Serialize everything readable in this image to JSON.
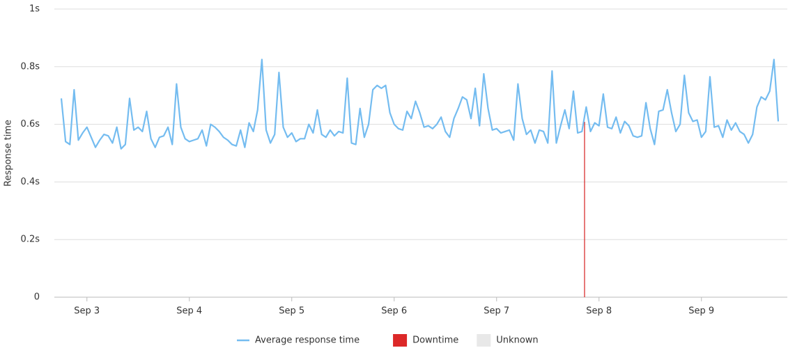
{
  "chart_data": {
    "type": "line",
    "y_label": "Response time",
    "ylim": [
      0,
      1
    ],
    "yticks": [
      0,
      {
        "value": 0.2,
        "label": "0.2s"
      },
      {
        "value": 0.4,
        "label": "0.4s"
      },
      {
        "value": 0.6,
        "label": "0.6s"
      },
      {
        "value": 0.8,
        "label": "0.8s"
      },
      {
        "value": 1,
        "label": "1s"
      }
    ],
    "grid": true,
    "categories": [
      null,
      null,
      null,
      null,
      null,
      null,
      "Sep 3",
      null,
      null,
      null,
      null,
      null,
      null,
      null,
      null,
      null,
      null,
      null,
      null,
      null,
      null,
      null,
      null,
      null,
      null,
      null,
      null,
      null,
      null,
      null,
      "Sep 4",
      null,
      null,
      null,
      null,
      null,
      null,
      null,
      null,
      null,
      null,
      null,
      null,
      null,
      null,
      null,
      null,
      null,
      null,
      null,
      null,
      null,
      null,
      null,
      "Sep 5",
      null,
      null,
      null,
      null,
      null,
      null,
      null,
      null,
      null,
      null,
      null,
      null,
      null,
      null,
      null,
      null,
      null,
      null,
      null,
      null,
      null,
      null,
      null,
      "Sep 6",
      null,
      null,
      null,
      null,
      null,
      null,
      null,
      null,
      null,
      null,
      null,
      null,
      null,
      null,
      null,
      null,
      null,
      null,
      null,
      null,
      null,
      null,
      null,
      "Sep 7",
      null,
      null,
      null,
      null,
      null,
      null,
      null,
      null,
      null,
      null,
      null,
      null,
      null,
      null,
      null,
      null,
      null,
      null,
      null,
      null,
      null,
      null,
      null,
      "Sep 8",
      null,
      null,
      null,
      null,
      null,
      null,
      null,
      null,
      null,
      null,
      null,
      null,
      null,
      null,
      null,
      null,
      null,
      null,
      null,
      null,
      null,
      null,
      null,
      "Sep 9",
      null,
      null,
      null,
      null,
      null,
      null,
      null,
      null,
      null,
      null,
      null,
      null,
      null,
      null,
      null,
      null,
      null,
      null
    ],
    "series": [
      {
        "name": "Average response time",
        "color": "#74bcf0",
        "values": [
          0.69,
          0.54,
          0.53,
          0.72,
          0.545,
          0.57,
          0.59,
          0.555,
          0.52,
          0.545,
          0.565,
          0.56,
          0.535,
          0.59,
          0.515,
          0.53,
          0.69,
          0.58,
          0.59,
          0.575,
          0.645,
          0.55,
          0.52,
          0.555,
          0.56,
          0.59,
          0.53,
          0.74,
          0.59,
          0.55,
          0.54,
          0.545,
          0.55,
          0.58,
          0.525,
          0.6,
          0.59,
          0.575,
          0.555,
          0.545,
          0.53,
          0.525,
          0.58,
          0.52,
          0.605,
          0.575,
          0.65,
          0.825,
          0.58,
          0.535,
          0.565,
          0.78,
          0.59,
          0.555,
          0.57,
          0.54,
          0.55,
          0.55,
          0.6,
          0.57,
          0.65,
          0.565,
          0.555,
          0.58,
          0.56,
          0.575,
          0.57,
          0.76,
          0.535,
          0.53,
          0.655,
          0.555,
          0.6,
          0.72,
          0.735,
          0.725,
          0.735,
          0.64,
          0.6,
          0.585,
          0.58,
          0.645,
          0.62,
          0.68,
          0.64,
          0.59,
          0.595,
          0.585,
          0.6,
          0.625,
          0.575,
          0.555,
          0.62,
          0.655,
          0.695,
          0.685,
          0.62,
          0.725,
          0.595,
          0.775,
          0.655,
          0.58,
          0.585,
          0.57,
          0.575,
          0.58,
          0.545,
          0.74,
          0.62,
          0.565,
          0.58,
          0.535,
          0.58,
          0.575,
          0.535,
          0.785,
          0.535,
          0.595,
          0.65,
          0.585,
          0.715,
          0.57,
          0.575,
          0.66,
          0.575,
          0.605,
          0.595,
          0.705,
          0.59,
          0.585,
          0.625,
          0.57,
          0.61,
          0.595,
          0.56,
          0.555,
          0.56,
          0.675,
          0.585,
          0.53,
          0.645,
          0.65,
          0.72,
          0.64,
          0.575,
          0.6,
          0.77,
          0.64,
          0.61,
          0.615,
          0.555,
          0.575,
          0.765,
          0.59,
          0.595,
          0.555,
          0.615,
          0.58,
          0.605,
          0.575,
          0.565,
          0.535,
          0.565,
          0.66,
          0.695,
          0.685,
          0.715,
          0.825,
          0.61
        ]
      }
    ],
    "legend_extra": [
      {
        "name": "Downtime",
        "color": "#dc2828"
      },
      {
        "name": "Unknown",
        "color": "#e8e8e8"
      }
    ]
  }
}
